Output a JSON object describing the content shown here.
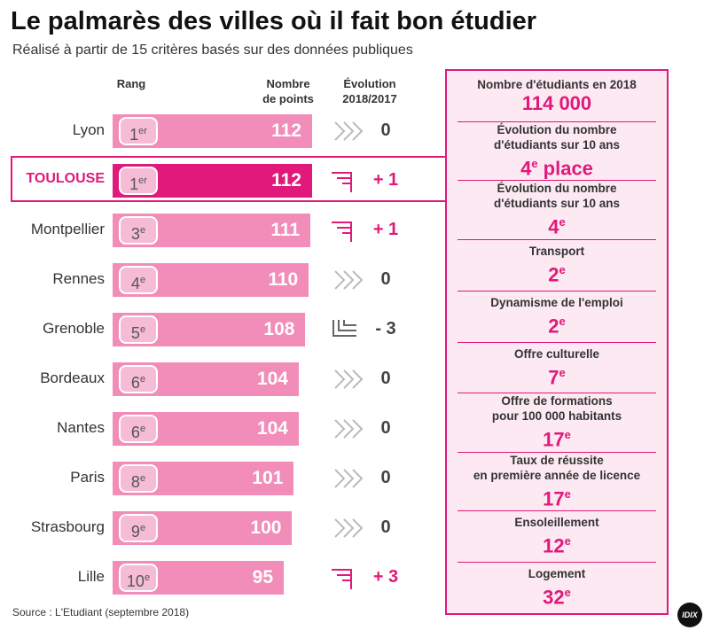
{
  "title": "Le palmarès des villes où il fait bon étudier",
  "subtitle": "Réalisé à partir de 15 critères basés sur des données publiques",
  "headers": {
    "rank": "Rang",
    "points": [
      "Nombre",
      "de points"
    ],
    "evolution": [
      "Évolution",
      "2018/2017"
    ]
  },
  "rows": [
    {
      "city": "Lyon",
      "rank": "1",
      "rank_suffix": "er",
      "points": 112,
      "evolution": "0"
    },
    {
      "city": "TOULOUSE",
      "rank": "1",
      "rank_suffix": "er",
      "points": 112,
      "evolution": "+ 1",
      "highlight": true
    },
    {
      "city": "Montpellier",
      "rank": "3",
      "rank_suffix": "e",
      "points": 111,
      "evolution": "+ 1"
    },
    {
      "city": "Rennes",
      "rank": "4",
      "rank_suffix": "e",
      "points": 110,
      "evolution": "0"
    },
    {
      "city": "Grenoble",
      "rank": "5",
      "rank_suffix": "e",
      "points": 108,
      "evolution": "- 3"
    },
    {
      "city": "Bordeaux",
      "rank": "6",
      "rank_suffix": "e",
      "points": 104,
      "evolution": "0"
    },
    {
      "city": "Nantes",
      "rank": "6",
      "rank_suffix": "e",
      "points": 104,
      "evolution": "0"
    },
    {
      "city": "Paris",
      "rank": "8",
      "rank_suffix": "e",
      "points": 101,
      "evolution": "0"
    },
    {
      "city": "Strasbourg",
      "rank": "9",
      "rank_suffix": "e",
      "points": 100,
      "evolution": "0"
    },
    {
      "city": "Lille",
      "rank": "10",
      "rank_suffix": "e",
      "points": 95,
      "evolution": "+ 3"
    }
  ],
  "panel": [
    {
      "label": [
        "Nombre d'étudiants en 2018"
      ],
      "value": "114 000"
    },
    {
      "label": [
        "Évolution du nombre",
        "d'étudiants sur 10 ans"
      ],
      "value": "4",
      "suffix": "e",
      "after": " place"
    },
    {
      "label": [
        "Évolution du nombre",
        "d'étudiants sur 10 ans"
      ],
      "value": "4",
      "suffix": "e"
    },
    {
      "label": [
        "Transport"
      ],
      "value": "2",
      "suffix": "e"
    },
    {
      "label": [
        "Dynamisme de l'emploi"
      ],
      "value": "2",
      "suffix": "e"
    },
    {
      "label": [
        "Offre culturelle"
      ],
      "value": "7",
      "suffix": "e"
    },
    {
      "label": [
        "Offre de formations",
        "pour 100 000 habitants"
      ],
      "value": "17",
      "suffix": "e"
    },
    {
      "label": [
        "Taux de réussite",
        "en première année de licence"
      ],
      "value": "17",
      "suffix": "e"
    },
    {
      "label": [
        "Ensoleillement"
      ],
      "value": "12",
      "suffix": "e"
    },
    {
      "label": [
        "Logement"
      ],
      "value": "32",
      "suffix": "e"
    }
  ],
  "source": "Source : L'Etudiant (septembre 2018)",
  "logo": "IDIX"
}
